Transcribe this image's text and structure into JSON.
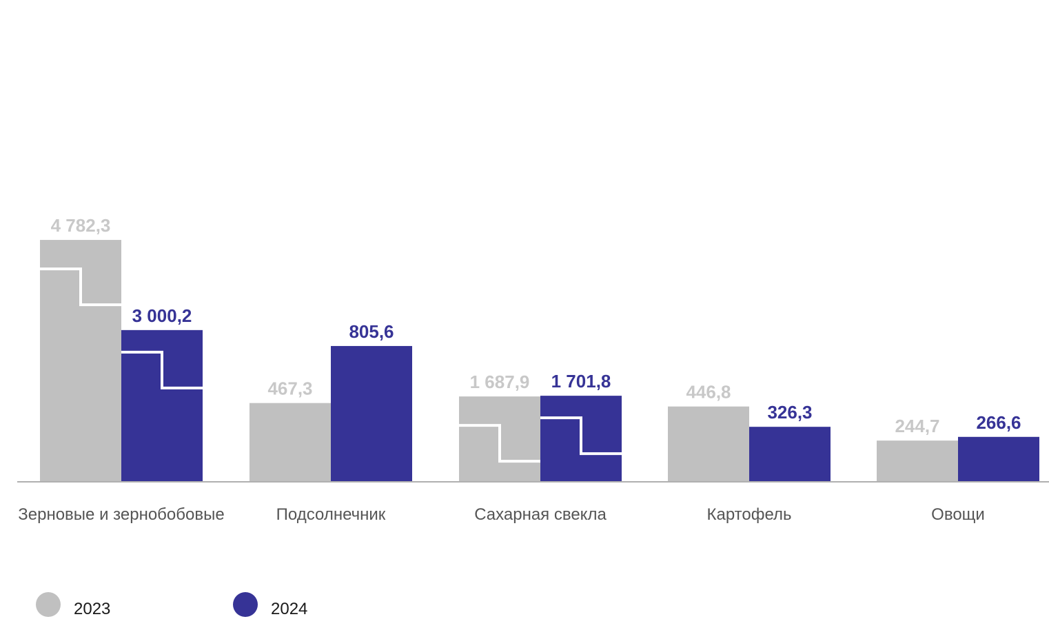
{
  "chart_data": {
    "type": "bar",
    "categories": [
      "Зерновые и зернобобовые",
      "Подсолнечник",
      "Сахарная свекла",
      "Картофель",
      "Овощи"
    ],
    "series": [
      {
        "name": "2023",
        "color": "#c0c0c0",
        "values": [
          4782.3,
          467.3,
          1687.9,
          446.8,
          244.7
        ],
        "labels": [
          "4 782,3",
          "467,3",
          "1 687,9",
          "446,8",
          "244,7"
        ]
      },
      {
        "name": "2024",
        "color": "#363396",
        "values": [
          3000.2,
          805.6,
          1701.8,
          326.3,
          266.6
        ],
        "labels": [
          "3 000,2",
          "805,6",
          "1 701,8",
          "326,3",
          "266,6"
        ]
      }
    ],
    "scale_breaks": [
      true,
      false,
      true,
      false,
      false
    ],
    "legend_position": "bottom-left",
    "grid": false
  },
  "legend": {
    "items": [
      {
        "label": "2023",
        "color": "#c0c0c0"
      },
      {
        "label": "2024",
        "color": "#363396"
      }
    ]
  }
}
